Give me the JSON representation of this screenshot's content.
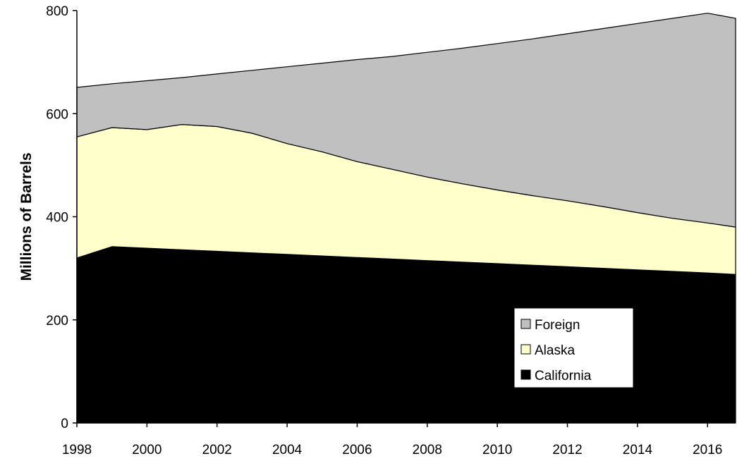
{
  "chart_data": {
    "type": "area",
    "stacked": true,
    "title": "",
    "xlabel": "",
    "ylabel": "Millions of Barrels",
    "xlim": [
      1998,
      2016.8
    ],
    "ylim": [
      0,
      800
    ],
    "x_ticks": [
      1998,
      2000,
      2002,
      2004,
      2006,
      2008,
      2010,
      2012,
      2014,
      2016
    ],
    "y_ticks": [
      0,
      200,
      400,
      600,
      800
    ],
    "grid": false,
    "legend_position": "bottom-right",
    "x": [
      1998,
      1999,
      2000,
      2001,
      2002,
      2003,
      2004,
      2005,
      2006,
      2007,
      2008,
      2009,
      2010,
      2011,
      2012,
      2013,
      2014,
      2015,
      2016,
      2016.8
    ],
    "series": [
      {
        "name": "California",
        "color": "#000000",
        "values": [
          320,
          342,
          339,
          336,
          333,
          330,
          327,
          324,
          321,
          318,
          315,
          312,
          309,
          306,
          303,
          300,
          297,
          294,
          291,
          288
        ]
      },
      {
        "name": "Alaska",
        "color": "#FFFFCC",
        "values": [
          235,
          231,
          230,
          243,
          242,
          232,
          215,
          202,
          186,
          174,
          162,
          152,
          143,
          135,
          128,
          120,
          111,
          103,
          97,
          92
        ]
      },
      {
        "name": "Foreign",
        "color": "#C0C0C0",
        "values": [
          96,
          85,
          95,
          91,
          102,
          122,
          149,
          172,
          198,
          219,
          242,
          263,
          284,
          304,
          324,
          345,
          367,
          388,
          407,
          405
        ]
      }
    ],
    "legend_order": [
      "Foreign",
      "Alaska",
      "California"
    ]
  }
}
